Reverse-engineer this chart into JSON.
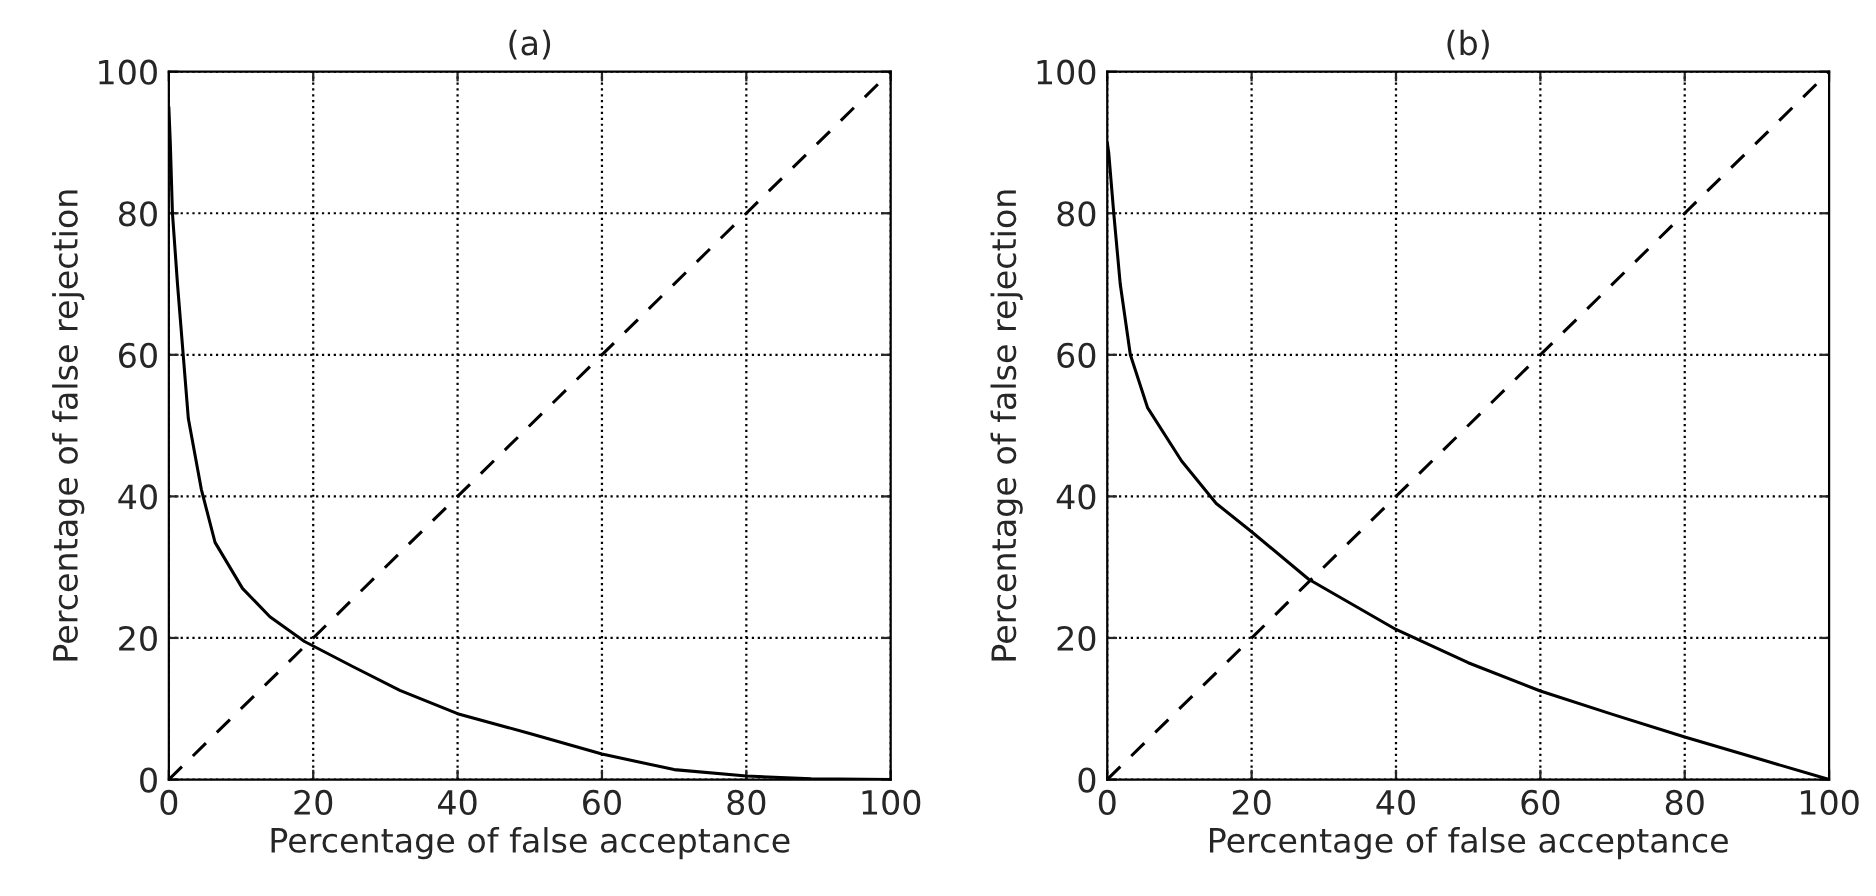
{
  "chart_data": [
    {
      "type": "line",
      "title": "(a)",
      "xlabel": "Percentage of false acceptance",
      "ylabel": "Percentage of false rejection",
      "xlim": [
        0,
        100
      ],
      "ylim": [
        0,
        100
      ],
      "xticks": [
        0,
        20,
        40,
        60,
        80,
        100
      ],
      "yticks": [
        0,
        20,
        40,
        60,
        80,
        100
      ],
      "grid": true,
      "series": [
        {
          "color": "#000000",
          "line_style": "solid",
          "x": [
            0,
            0.2,
            0.5,
            1.2,
            2.7,
            4.5,
            6.4,
            10.2,
            14,
            18.8,
            25.4,
            32,
            40,
            50,
            60,
            70,
            80,
            89,
            100
          ],
          "values": [
            95,
            90,
            80,
            70,
            51,
            41,
            33.5,
            27,
            23,
            19.5,
            16,
            12.6,
            9.3,
            6.5,
            3.6,
            1.4,
            0.5,
            0.1,
            0
          ]
        },
        {
          "color": "#000000",
          "line_style": "dashed",
          "x": [
            0,
            100
          ],
          "values": [
            0,
            100
          ]
        }
      ]
    },
    {
      "type": "line",
      "title": "(b)",
      "xlabel": "Percentage of false acceptance",
      "ylabel": "Percentage of false rejection",
      "xlim": [
        0,
        100
      ],
      "ylim": [
        0,
        100
      ],
      "xticks": [
        0,
        20,
        40,
        60,
        80,
        100
      ],
      "yticks": [
        0,
        20,
        40,
        60,
        80,
        100
      ],
      "grid": true,
      "series": [
        {
          "color": "#000000",
          "line_style": "solid",
          "x": [
            0,
            0.2,
            0.9,
            1.8,
            3.2,
            5.6,
            10.3,
            15.1,
            20,
            27.9,
            40,
            50,
            60,
            70,
            80,
            90,
            100
          ],
          "values": [
            90,
            88.6,
            80,
            70,
            60,
            52.5,
            45,
            39,
            35,
            28.3,
            21.2,
            16.5,
            12.5,
            9.2,
            6,
            3,
            0
          ]
        },
        {
          "color": "#000000",
          "line_style": "dashed",
          "x": [
            0,
            100
          ],
          "values": [
            0,
            100
          ]
        }
      ]
    }
  ]
}
